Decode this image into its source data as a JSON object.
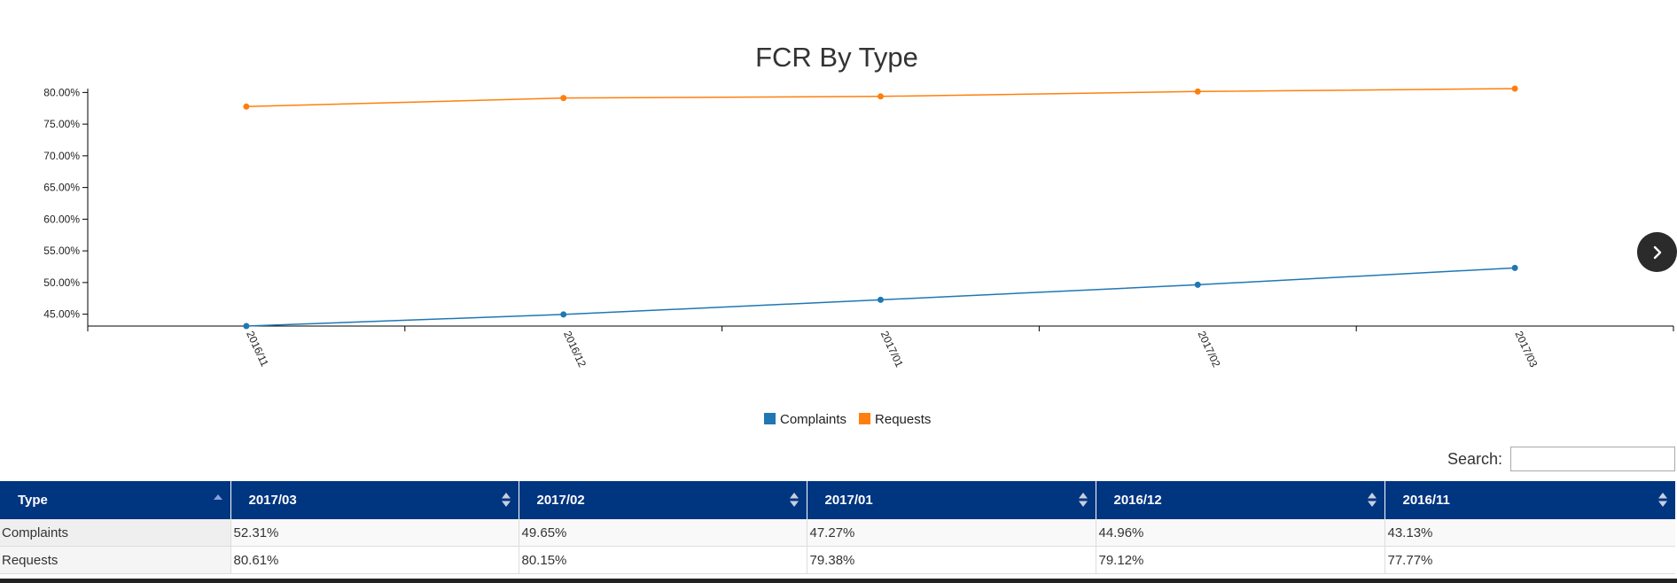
{
  "chart_data": {
    "type": "line",
    "title": "FCR By Type",
    "categories": [
      "2016/11",
      "2016/12",
      "2017/01",
      "2017/02",
      "2017/03"
    ],
    "series": [
      {
        "name": "Complaints",
        "color": "#1f77b4",
        "values": [
          43.13,
          44.96,
          47.27,
          49.65,
          52.31
        ]
      },
      {
        "name": "Requests",
        "color": "#ff7f0e",
        "values": [
          77.77,
          79.12,
          79.38,
          80.15,
          80.61
        ]
      }
    ],
    "ylim": [
      43.13,
      80.61
    ],
    "yticks": [
      45,
      50,
      55,
      60,
      65,
      70,
      75,
      80
    ],
    "ytick_labels": [
      "45.00%",
      "50.00%",
      "55.00%",
      "60.00%",
      "65.00%",
      "70.00%",
      "75.00%",
      "80.00%"
    ],
    "xlabel": "",
    "ylabel": "",
    "legend_position": "bottom-center",
    "grid": false
  },
  "search": {
    "label": "Search:",
    "value": ""
  },
  "table": {
    "columns": [
      "Type",
      "2017/03",
      "2017/02",
      "2017/01",
      "2016/12",
      "2016/11"
    ],
    "rows": [
      [
        "Complaints",
        "52.31%",
        "49.65%",
        "47.27%",
        "44.96%",
        "43.13%"
      ],
      [
        "Requests",
        "80.61%",
        "80.15%",
        "79.38%",
        "79.12%",
        "77.77%"
      ]
    ]
  },
  "icons": {
    "next": "chevron-right-icon",
    "sort": "sort-icon"
  }
}
